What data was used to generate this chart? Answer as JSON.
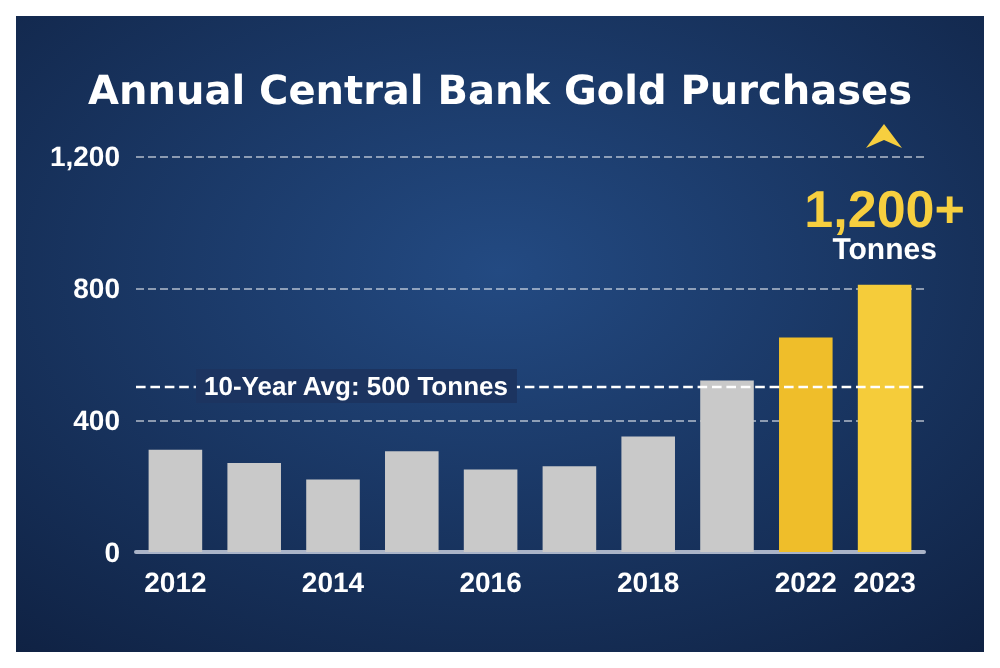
{
  "chart_data": {
    "type": "bar",
    "title": "Annual Central Bank Gold Purchases",
    "categories": [
      "2012",
      null,
      "2014",
      null,
      "2016",
      null,
      "2018",
      null,
      "2022",
      "2023"
    ],
    "values": [
      310,
      270,
      220,
      305,
      250,
      260,
      350,
      520,
      650,
      810
    ],
    "colors": [
      "#c9c9c9",
      "#c9c9c9",
      "#c9c9c9",
      "#c9c9c9",
      "#c9c9c9",
      "#c9c9c9",
      "#c9c9c9",
      "#c9c9c9",
      "#efbe2a",
      "#f5cc3a"
    ],
    "ylim": [
      0,
      1200
    ],
    "yticks": [
      0,
      400,
      800,
      {
        "value": 1200,
        "label": "1,200"
      }
    ],
    "grid": "y",
    "ref_lines": [
      {
        "axis": "y",
        "value": 500,
        "label": "10-Year Avg: 500 Tonnes",
        "color": "#ffffff",
        "line_style": "dashed"
      }
    ],
    "annotations": [
      {
        "text": "1,200+\nTonnes",
        "x": "2023",
        "y": 810
      }
    ]
  }
}
